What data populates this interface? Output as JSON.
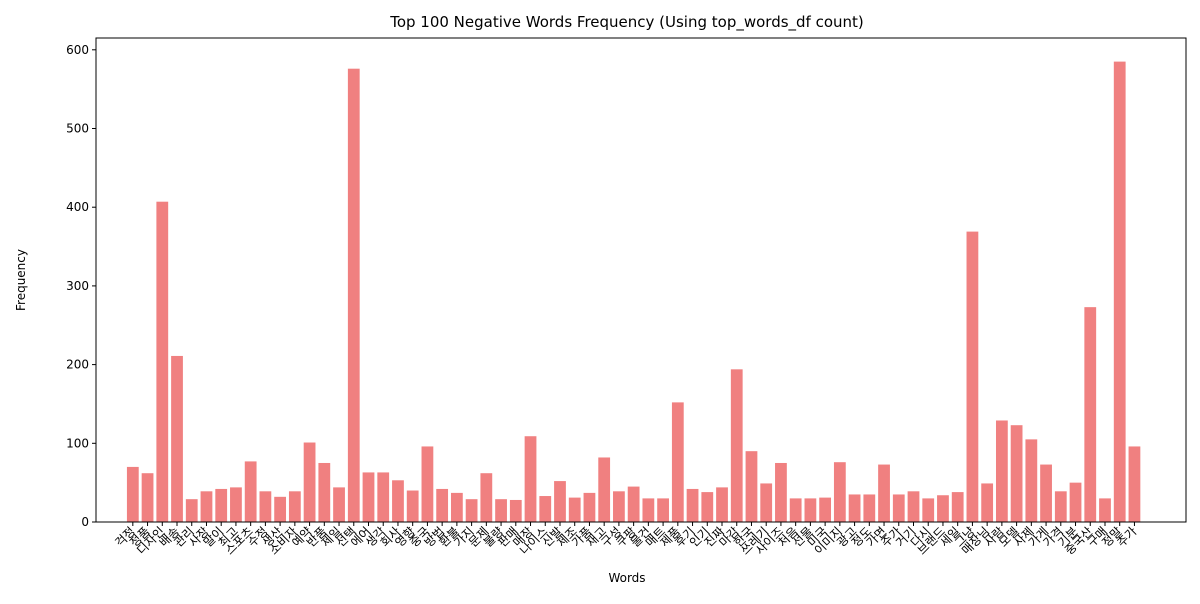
{
  "chart_data": {
    "type": "bar",
    "title": "Top 100 Negative Words Frequency (Using top_words_df count)",
    "xlabel": "Words",
    "ylabel": "Frequency",
    "categories": [
      "걱정",
      "정품",
      "디자인",
      "배송",
      "관리",
      "사장",
      "말이",
      "최고",
      "스포츠",
      "수정",
      "생산",
      "소비자",
      "예약",
      "반품",
      "제일",
      "선택",
      "에어",
      "생각",
      "회사",
      "영향",
      "중국",
      "방법",
      "환불",
      "가지",
      "문제",
      "불량",
      "판매",
      "매장",
      "나이스",
      "신발",
      "제조",
      "가품",
      "재고",
      "구성",
      "쿠팡",
      "물건",
      "매트",
      "제품",
      "후기",
      "인기",
      "진짜",
      "마감",
      "한국",
      "쓰레기",
      "사이즈",
      "처음",
      "선물",
      "미국",
      "이미지",
      "광고",
      "정도",
      "가면",
      "주가",
      "거기",
      "다시",
      "브랜드",
      "세일",
      "그냥",
      "매장님",
      "사람",
      "모델",
      "사제",
      "가게",
      "가격",
      "기분",
      "중국산",
      "구매",
      "정말",
      "추가"
    ],
    "values": [
      70,
      62,
      407,
      211,
      29,
      39,
      42,
      44,
      77,
      39,
      32,
      39,
      101,
      75,
      44,
      576,
      63,
      63,
      53,
      40,
      96,
      42,
      37,
      29,
      62,
      29,
      28,
      109,
      33,
      52,
      31,
      37,
      82,
      39,
      45,
      30,
      30,
      152,
      42,
      38,
      44,
      194,
      90,
      49,
      75,
      30,
      30,
      31,
      76,
      35,
      35,
      73,
      35,
      39,
      30,
      34,
      38,
      369,
      49,
      129,
      123,
      105,
      73,
      39,
      50,
      273,
      30,
      585,
      96
    ],
    "color": "#f08080",
    "ylim": [
      0,
      615
    ],
    "yticks": [
      0,
      100,
      200,
      300,
      400,
      500,
      600
    ],
    "grid": false
  }
}
